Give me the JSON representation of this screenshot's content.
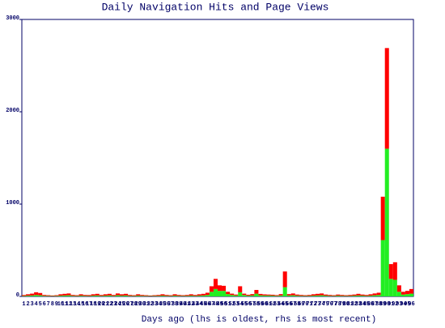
{
  "chart_data": {
    "type": "stacked_bar",
    "title": "Daily Navigation Hits and Page Views",
    "x_label": "Days ago (lhs is oldest, rhs is most recent)",
    "categories": [
      "1",
      "2",
      "3",
      "4",
      "5",
      "6",
      "7",
      "8",
      "9",
      "10",
      "11",
      "12",
      "13",
      "14",
      "15",
      "16",
      "17",
      "18",
      "19",
      "20",
      "21",
      "22",
      "23",
      "24",
      "25",
      "26",
      "27",
      "28",
      "29",
      "30",
      "31",
      "32",
      "33",
      "34",
      "35",
      "36",
      "37",
      "38",
      "39",
      "40",
      "41",
      "42",
      "43",
      "44",
      "45",
      "46",
      "47",
      "48",
      "49",
      "50",
      "51",
      "52",
      "53",
      "54",
      "55",
      "56",
      "57",
      "58",
      "59",
      "60",
      "61",
      "62",
      "63",
      "64",
      "65",
      "66",
      "67",
      "68",
      "69",
      "70",
      "71",
      "72",
      "73",
      "74",
      "75",
      "76",
      "77",
      "78",
      "79",
      "80",
      "81",
      "82",
      "83",
      "84",
      "85",
      "86",
      "87",
      "88",
      "89",
      "90",
      "91",
      "92",
      "93",
      "94",
      "95",
      "96"
    ],
    "series": [
      {
        "color": "#22ee22",
        "values": [
          5,
          8,
          10,
          15,
          12,
          6,
          5,
          4,
          5,
          8,
          10,
          12,
          6,
          5,
          8,
          6,
          5,
          8,
          10,
          6,
          8,
          10,
          6,
          12,
          8,
          10,
          6,
          5,
          8,
          6,
          5,
          4,
          5,
          6,
          8,
          6,
          5,
          8,
          6,
          5,
          6,
          8,
          6,
          8,
          10,
          15,
          50,
          80,
          60,
          60,
          25,
          15,
          10,
          45,
          15,
          8,
          10,
          30,
          12,
          10,
          10,
          8,
          6,
          10,
          100,
          10,
          12,
          8,
          6,
          5,
          6,
          8,
          10,
          12,
          8,
          6,
          5,
          8,
          6,
          5,
          6,
          8,
          10,
          8,
          6,
          8,
          12,
          15,
          610,
          1600,
          190,
          180,
          50,
          20,
          25,
          30
        ]
      },
      {
        "color": "#ff0000",
        "values": [
          10,
          15,
          20,
          30,
          25,
          10,
          8,
          6,
          8,
          15,
          18,
          20,
          10,
          8,
          15,
          10,
          10,
          15,
          18,
          10,
          15,
          18,
          10,
          20,
          15,
          18,
          10,
          8,
          15,
          10,
          8,
          6,
          8,
          10,
          15,
          10,
          8,
          15,
          10,
          8,
          10,
          15,
          10,
          15,
          18,
          25,
          60,
          110,
          60,
          55,
          25,
          15,
          10,
          65,
          15,
          10,
          15,
          40,
          15,
          12,
          10,
          10,
          8,
          15,
          170,
          15,
          20,
          12,
          10,
          8,
          10,
          15,
          18,
          20,
          12,
          10,
          8,
          12,
          10,
          8,
          10,
          12,
          18,
          12,
          10,
          15,
          20,
          25,
          470,
          1090,
          160,
          190,
          70,
          30,
          35,
          50
        ]
      }
    ],
    "ylim": [
      0,
      3000
    ],
    "yticks": [
      0,
      1000,
      2000,
      3000
    ]
  }
}
